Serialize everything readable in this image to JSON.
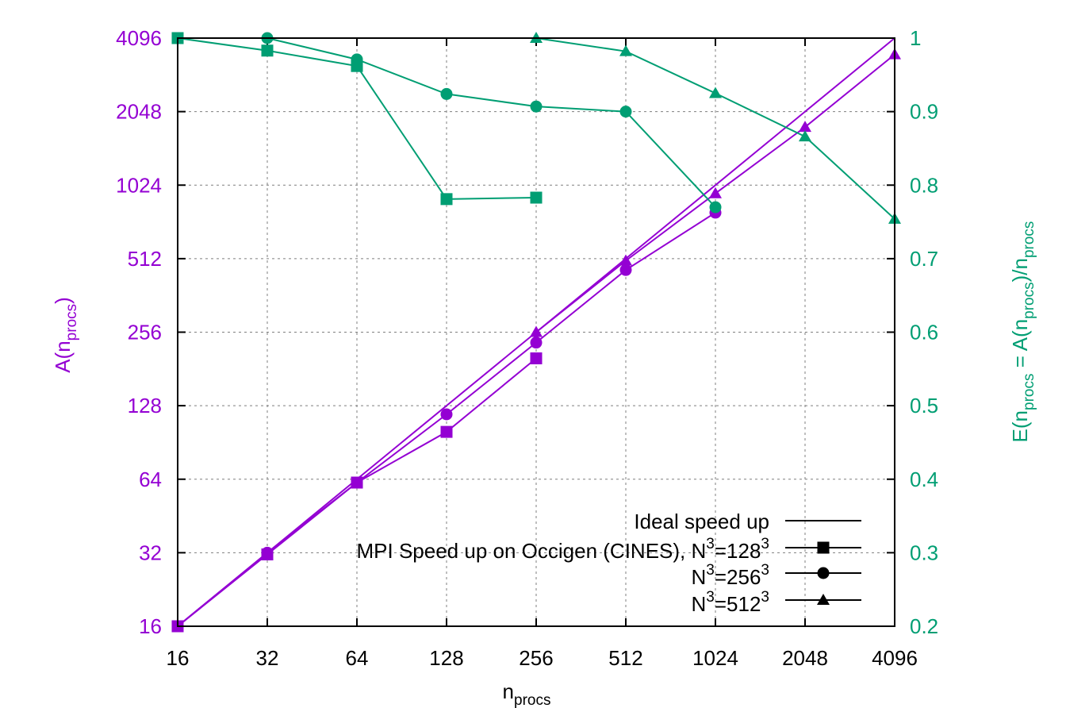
{
  "chart_data": {
    "type": "line",
    "xlabel": {
      "base": "n",
      "sub": "procs"
    },
    "ylabel_left": {
      "base": "A(n",
      "sub": "procs",
      "tail": ")"
    },
    "ylabel_right": {
      "p1": "E(n",
      "s1": "procs",
      "p2": " = A(n",
      "s2": "procs",
      "p3": ")/n",
      "s3": "procs"
    },
    "x_scale": "log2",
    "xlim": [
      16,
      4096
    ],
    "x_ticks": [
      16,
      32,
      64,
      128,
      256,
      512,
      1024,
      2048,
      4096
    ],
    "x_tick_labels": [
      "16",
      "32",
      "64",
      "128",
      "256",
      "512",
      "1024",
      "2048",
      "4096"
    ],
    "y_left_scale": "log2",
    "y_left_lim": [
      16,
      4096
    ],
    "y_left_ticks": [
      16,
      32,
      64,
      128,
      256,
      512,
      1024,
      2048,
      4096
    ],
    "y_left_tick_labels": [
      "16",
      "32",
      "64",
      "128",
      "256",
      "512",
      "1024",
      "2048",
      "4096"
    ],
    "y_right_lim": [
      0.2,
      1.0
    ],
    "y_right_ticks": [
      0.2,
      0.3,
      0.4,
      0.5,
      0.6,
      0.7,
      0.8,
      0.9,
      1.0
    ],
    "y_right_tick_labels": [
      "0.2",
      "0.3",
      "0.4",
      "0.5",
      "0.6",
      "0.7",
      "0.8",
      "0.9",
      "1"
    ],
    "grid": true,
    "legend_position": "bottom-right",
    "colors": {
      "speedup": "#9400d3",
      "efficiency": "#009e73"
    },
    "series": [
      {
        "id": "ideal",
        "axis": "left",
        "marker": "none",
        "x": [
          16,
          4096
        ],
        "values": [
          16,
          4096
        ]
      },
      {
        "id": "n128",
        "axis": "left",
        "marker": "square",
        "x": [
          16,
          32,
          64,
          128,
          256
        ],
        "values": [
          16,
          31.5,
          62,
          100,
          200
        ]
      },
      {
        "id": "n256",
        "axis": "left",
        "marker": "circle",
        "x": [
          16,
          32,
          64,
          128,
          256,
          512,
          1024
        ],
        "values": [
          16,
          32,
          62,
          118,
          232,
          460,
          790
        ]
      },
      {
        "id": "n512",
        "axis": "left",
        "marker": "triangle",
        "x": [
          256,
          512,
          1024,
          2048,
          4096
        ],
        "values": [
          256,
          502,
          947,
          1770,
          3510
        ]
      },
      {
        "id": "e128",
        "axis": "right",
        "marker": "square",
        "x": [
          16,
          32,
          64,
          128,
          256
        ],
        "values": [
          1.0,
          0.983,
          0.962,
          0.781,
          0.783
        ]
      },
      {
        "id": "e256",
        "axis": "right",
        "marker": "circle",
        "x": [
          16,
          32,
          64,
          128,
          256,
          512,
          1024
        ],
        "values": [
          1.0,
          1.0,
          0.971,
          0.924,
          0.907,
          0.9,
          0.77
        ]
      },
      {
        "id": "e512",
        "axis": "right",
        "marker": "triangle",
        "x": [
          256,
          512,
          1024,
          2048,
          4096
        ],
        "values": [
          1.0,
          0.982,
          0.925,
          0.866,
          0.754
        ]
      }
    ],
    "legend": [
      {
        "marker": "none",
        "label": "Ideal speed up"
      },
      {
        "marker": "square",
        "label": "MPI Speed up on Occigen (CINES), N",
        "sup1": "3",
        "mid": "=128",
        "sup2": "3"
      },
      {
        "marker": "circle",
        "label": "N",
        "sup1": "3",
        "mid": "=256",
        "sup2": "3"
      },
      {
        "marker": "triangle",
        "label": "N",
        "sup1": "3",
        "mid": "=512",
        "sup2": "3"
      }
    ]
  }
}
